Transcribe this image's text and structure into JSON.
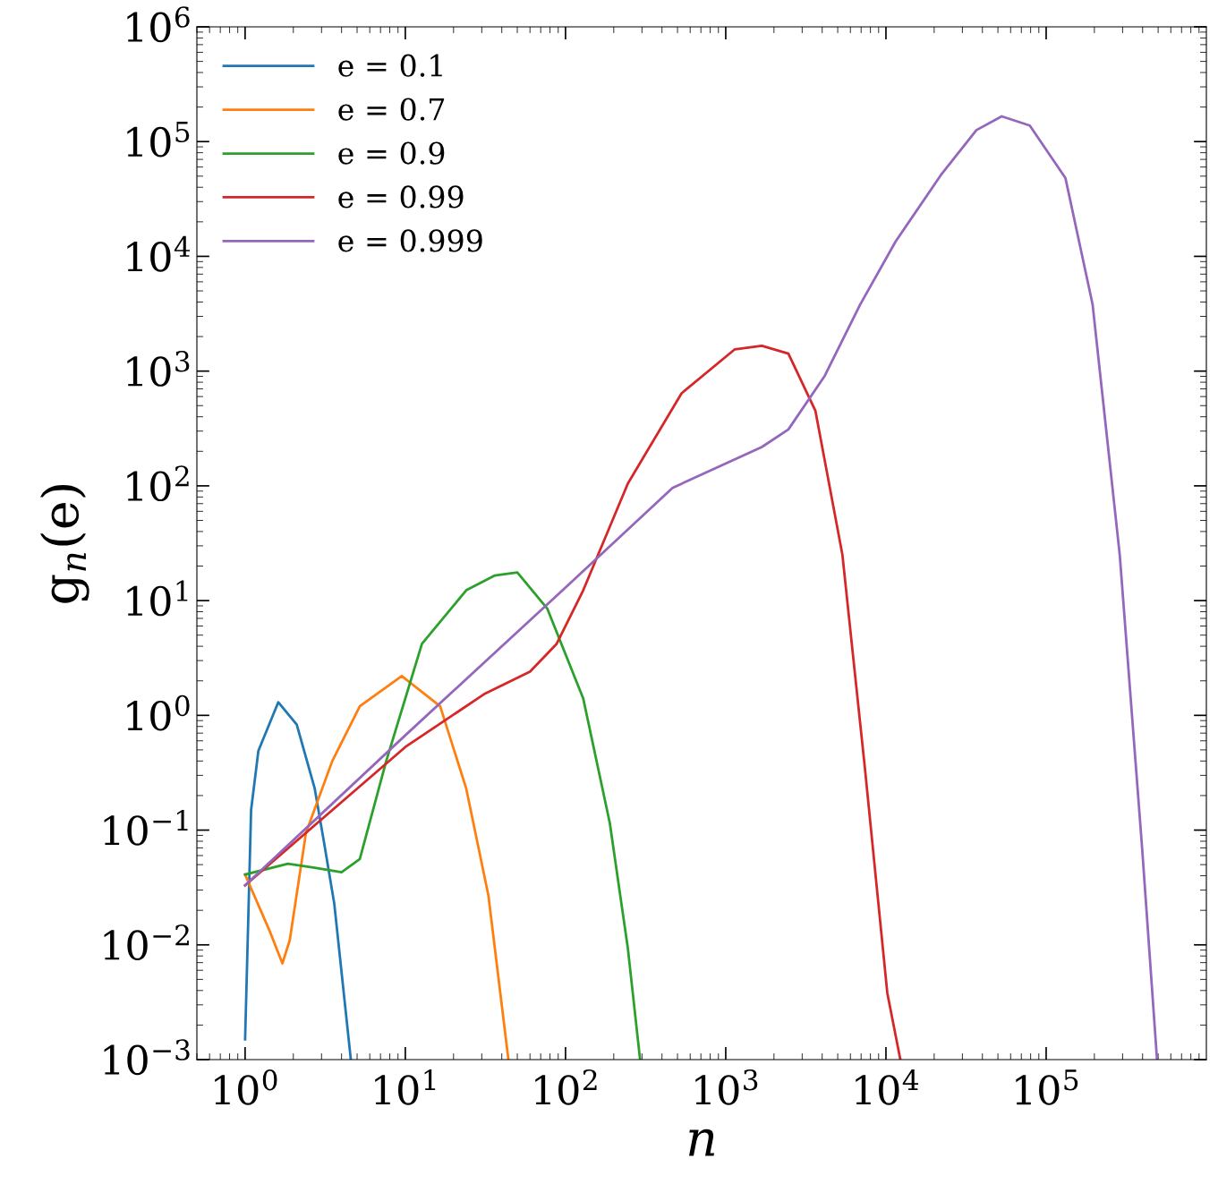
{
  "chart_data": {
    "type": "line",
    "xlabel": "n",
    "ylabel": "g$_{n}$(e)",
    "log": "xy",
    "grid": false,
    "legend": "top left",
    "marker": "none",
    "line_style": "solid",
    "xlim": [
      0.5,
      1000000
    ],
    "ylim": [
      0.001,
      1000000
    ],
    "xticks": [
      {
        "value": 1,
        "label": "10$^{0}$"
      },
      {
        "value": 10,
        "label": "10$^{1}$"
      },
      {
        "value": 100,
        "label": "10$^{2}$"
      },
      {
        "value": 1000,
        "label": "10$^{3}$"
      },
      {
        "value": 10000,
        "label": "10$^{4}$"
      },
      {
        "value": 100000,
        "label": "10$^{5}$"
      }
    ],
    "yticks": [
      {
        "value": 0.001,
        "label": "10$^{−3}$"
      },
      {
        "value": 0.01,
        "label": "10$^{−2}$"
      },
      {
        "value": 0.1,
        "label": "10$^{−1}$"
      },
      {
        "value": 1,
        "label": "10$^{0}$"
      },
      {
        "value": 10,
        "label": "10$^{1}$"
      },
      {
        "value": 100,
        "label": "10$^{2}$"
      },
      {
        "value": 1000,
        "label": "10$^{3}$"
      },
      {
        "value": 10000,
        "label": "10$^{4}$"
      },
      {
        "value": 100000,
        "label": "10$^{5}$"
      },
      {
        "value": 1000000,
        "label": "10$^{6}$"
      }
    ],
    "series": [
      {
        "name": "e = 0.1",
        "color": "#1f77b4",
        "x": [
          1,
          1.09,
          1.21,
          1.61,
          2.1,
          2.72,
          3.1,
          3.6,
          4.57
        ],
        "values": [
          0.0015,
          0.15,
          0.49,
          1.3,
          0.83,
          0.23,
          0.08,
          0.023,
          0.001
        ]
      },
      {
        "name": "e = 0.7",
        "color": "#ff7f0e",
        "x": [
          1,
          1.43,
          1.71,
          1.9,
          2.4,
          3.5,
          5.2,
          9.5,
          16.5,
          24,
          33,
          44
        ],
        "values": [
          0.041,
          0.013,
          0.0069,
          0.011,
          0.095,
          0.4,
          1.2,
          2.2,
          1.2,
          0.23,
          0.027,
          0.001
        ]
      },
      {
        "name": "e = 0.9",
        "color": "#2ca02c",
        "x": [
          1,
          1.85,
          2.72,
          4.0,
          5.2,
          7.6,
          12.7,
          24,
          36,
          50,
          77,
          129,
          189,
          245,
          292
        ],
        "values": [
          0.041,
          0.051,
          0.047,
          0.043,
          0.056,
          0.4,
          4.2,
          12.3,
          16.5,
          17.6,
          8.5,
          1.4,
          0.115,
          0.0093,
          0.001
        ]
      },
      {
        "name": "e = 0.99",
        "color": "#d62728",
        "x": [
          1,
          10,
          31.5,
          60,
          88,
          129,
          245,
          530,
          1140,
          1680,
          2460,
          3630,
          5350,
          7400,
          10200,
          12300
        ],
        "values": [
          0.033,
          0.53,
          1.55,
          2.4,
          4.2,
          12.3,
          105,
          640,
          1550,
          1660,
          1420,
          450,
          25,
          0.34,
          0.0038,
          0.001
        ]
      },
      {
        "name": "e = 0.999",
        "color": "#9467bd",
        "x": [
          1,
          10,
          100,
          465,
          1680,
          2460,
          4150,
          6900,
          11500,
          22000,
          36700,
          52800,
          79000,
          132000,
          195000,
          288000,
          398000,
          492000
        ],
        "values": [
          0.033,
          0.67,
          13,
          96,
          218,
          310,
          910,
          3800,
          13500,
          51000,
          126000,
          166000,
          138000,
          48000,
          3800,
          25,
          0.067,
          0.001
        ]
      }
    ]
  }
}
